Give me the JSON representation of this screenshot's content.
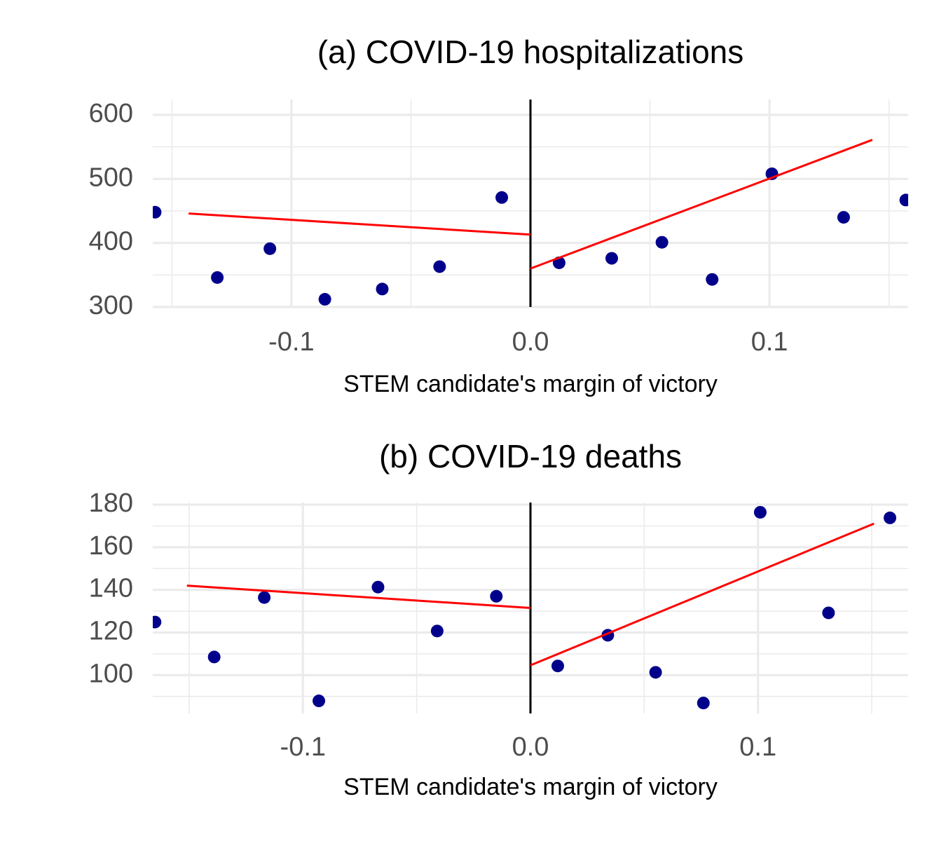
{
  "chart_data": [
    {
      "type": "scatter",
      "title": "(a) COVID-19 hospitalizations",
      "x_label": "STEM candidate's margin of victory",
      "x": [
        -0.157,
        -0.131,
        -0.109,
        -0.086,
        -0.062,
        -0.038,
        -0.012,
        0.012,
        0.034,
        0.055,
        0.076,
        0.101,
        0.131,
        0.157
      ],
      "y": [
        448,
        346,
        391,
        312,
        328,
        363,
        471,
        369,
        376,
        401,
        343,
        508,
        440,
        467
      ],
      "color": "#00008b",
      "fit_lines": [
        {
          "x": [
            -0.143,
            0
          ],
          "y": [
            446,
            413
          ],
          "color": "#ff0000"
        },
        {
          "x": [
            0,
            0.143
          ],
          "y": [
            360,
            561
          ],
          "color": "#ff0000"
        }
      ],
      "reference_line_x": 0,
      "xlim": [
        -0.158,
        0.158
      ],
      "ylim": [
        300,
        624
      ],
      "xticks": [
        -0.1,
        {
          "value": 0,
          "label": "0.0"
        },
        0.1
      ],
      "yticks": [
        300,
        400,
        500,
        600
      ],
      "minor_xticks": [
        -0.15,
        -0.05,
        0.05,
        0.15
      ],
      "minor_yticks": [
        350,
        450,
        550
      ],
      "grid": true
    },
    {
      "type": "scatter",
      "title": "(b) COVID-19 deaths",
      "x_label": "STEM candidate's margin of victory",
      "x": [
        -0.165,
        -0.139,
        -0.117,
        -0.093,
        -0.067,
        -0.041,
        -0.015,
        0.012,
        0.034,
        0.055,
        0.076,
        0.101,
        0.131,
        0.158
      ],
      "y": [
        124.9,
        108.5,
        136.4,
        87.9,
        141.3,
        120.7,
        137.0,
        104.3,
        118.7,
        101.3,
        86.9,
        176.4,
        129.2,
        173.8
      ],
      "color": "#00008b",
      "fit_lines": [
        {
          "x": [
            -0.151,
            0
          ],
          "y": [
            142.0,
            131.5
          ],
          "color": "#ff0000"
        },
        {
          "x": [
            0,
            0.151
          ],
          "y": [
            104.6,
            171.1
          ],
          "color": "#ff0000"
        }
      ],
      "reference_line_x": 0,
      "xlim": [
        -0.166,
        0.166
      ],
      "ylim": [
        82,
        181
      ],
      "xticks": [
        -0.1,
        {
          "value": 0,
          "label": "0.0"
        },
        0.1
      ],
      "yticks": [
        100,
        120,
        140,
        160,
        180
      ],
      "minor_xticks": [
        -0.15,
        -0.05,
        0.05,
        0.15
      ],
      "minor_yticks": [
        90,
        110,
        130,
        150,
        170
      ],
      "grid": true
    }
  ]
}
